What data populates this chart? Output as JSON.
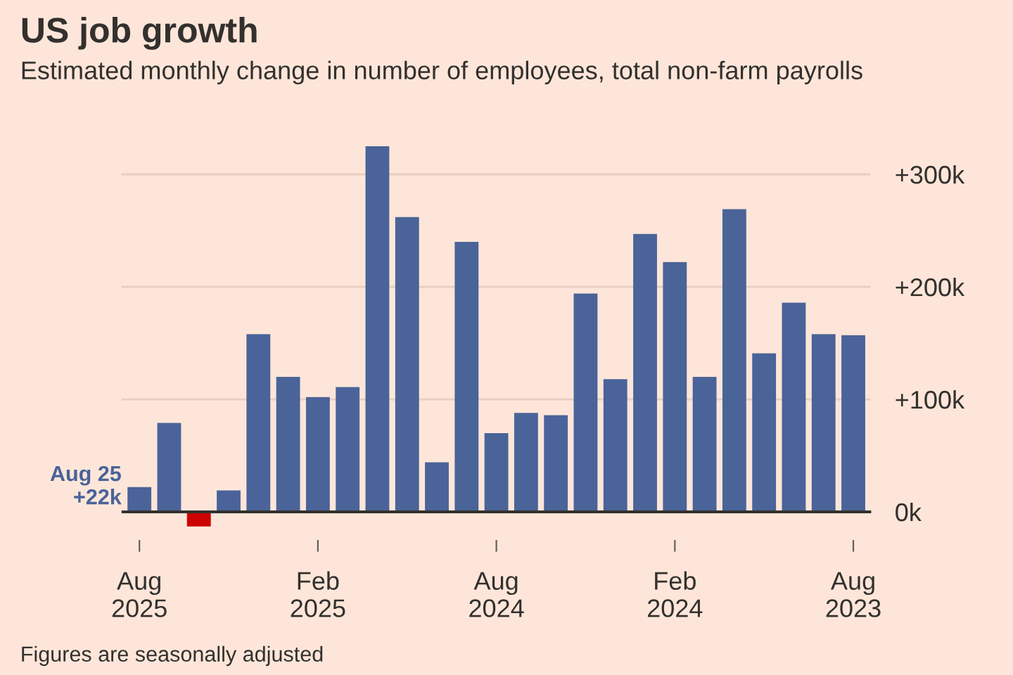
{
  "chart_data": {
    "type": "bar",
    "title": "US job growth",
    "subtitle": "Estimated monthly change in number of employees, total non-farm payrolls",
    "categories": [
      "Aug\n2025",
      null,
      null,
      null,
      null,
      null,
      "Feb\n2025",
      null,
      null,
      null,
      null,
      null,
      "Aug\n2024",
      null,
      null,
      null,
      null,
      null,
      "Feb\n2024",
      null,
      null,
      null,
      null,
      null,
      "Aug\n2023"
    ],
    "values": [
      22,
      79,
      -13,
      19,
      158,
      120,
      102,
      111,
      325,
      262,
      44,
      240,
      70,
      88,
      86,
      194,
      118,
      247,
      222,
      120,
      269,
      141,
      186,
      158,
      157
    ],
    "colors": [
      "#4a6399",
      "#4a6399",
      "#cc0000",
      "#4a6399",
      "#4a6399",
      "#4a6399",
      "#4a6399",
      "#4a6399",
      "#4a6399",
      "#4a6399",
      "#4a6399",
      "#4a6399",
      "#4a6399",
      "#4a6399",
      "#4a6399",
      "#4a6399",
      "#4a6399",
      "#4a6399",
      "#4a6399",
      "#4a6399",
      "#4a6399",
      "#4a6399",
      "#4a6399",
      "#4a6399",
      "#4a6399"
    ],
    "ylim": [
      -25,
      335
    ],
    "yticks": [
      {
        "value": 0,
        "label": "0k"
      },
      {
        "value": 100,
        "label": "+100k"
      },
      {
        "value": 200,
        "label": "+200k"
      },
      {
        "value": 300,
        "label": "+300k"
      }
    ],
    "grid": "y",
    "annotations": [
      {
        "text": "Aug 25\n+22k",
        "x": "Aug\n2025",
        "y": 22
      },
      "Figures are seasonally adjusted"
    ]
  }
}
